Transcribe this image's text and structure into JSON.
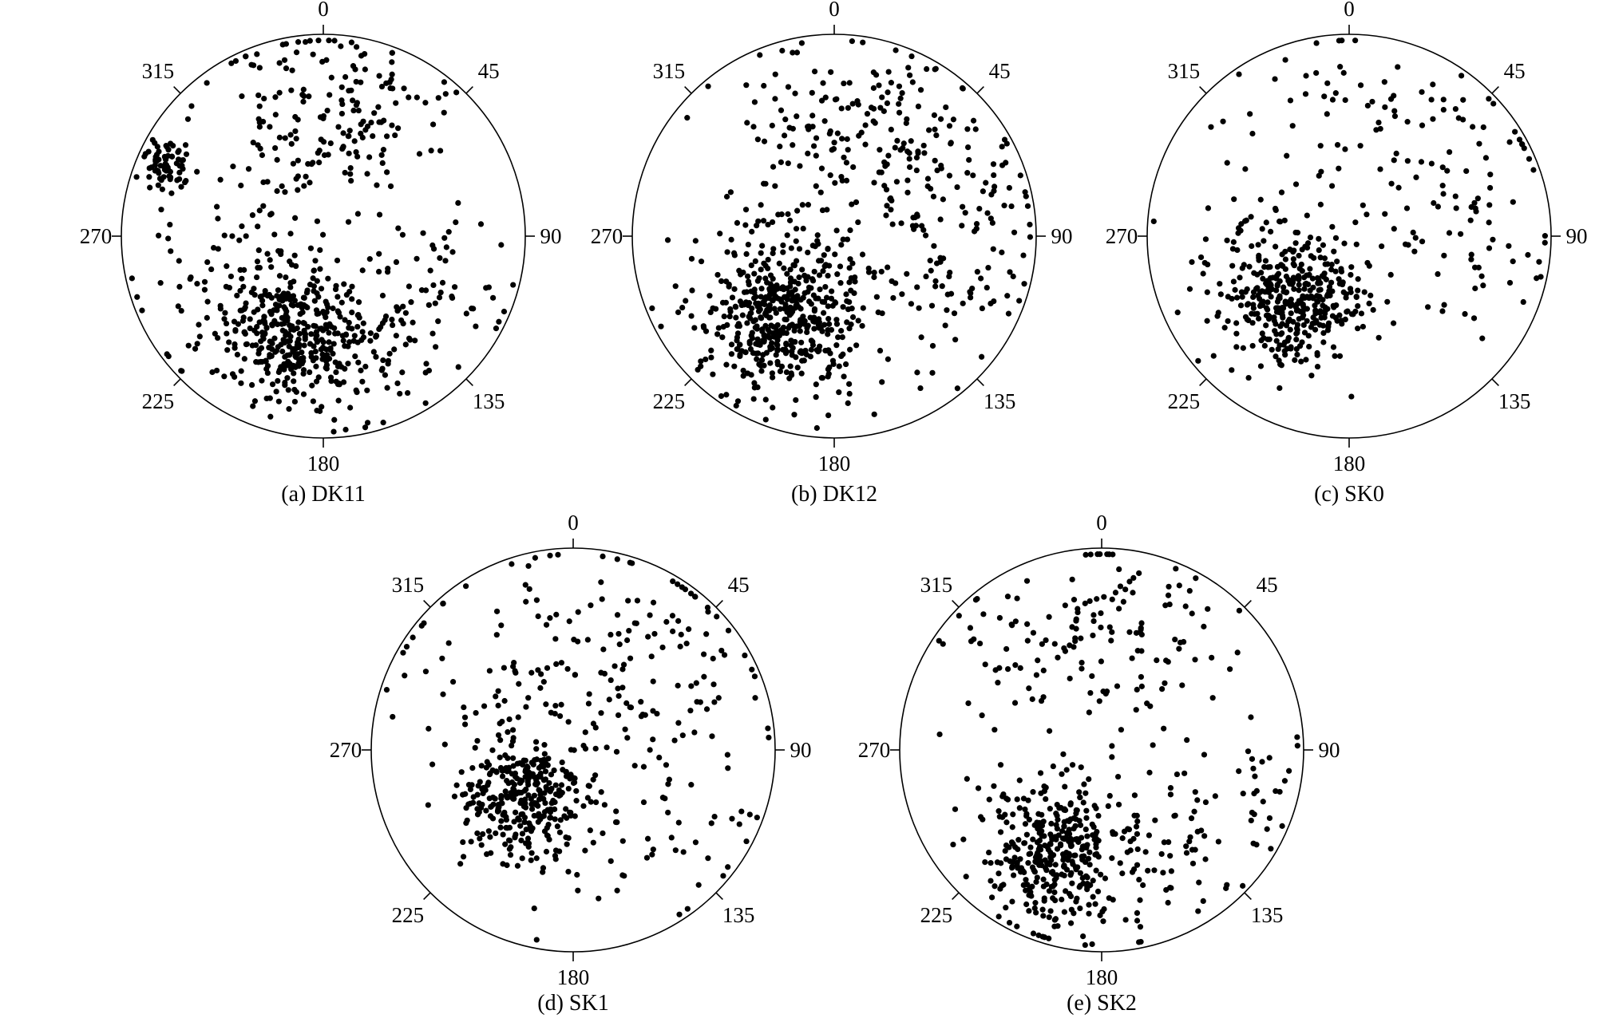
{
  "chart_data": [
    {
      "type": "scatter",
      "title": "(a) DK11",
      "axis_labels": [
        "0",
        "45",
        "90",
        "135",
        "180",
        "225",
        "270",
        "315"
      ],
      "clusters": [
        {
          "azimuth_deg": 198,
          "radial": 0.52,
          "count": 300,
          "spread": 0.16
        },
        {
          "azimuth_deg": 162,
          "radial": 0.52,
          "count": 110,
          "spread": 0.22
        },
        {
          "azimuth_deg": 295,
          "radial": 0.85,
          "count": 70,
          "spread": 0.06
        },
        {
          "azimuth_deg": 345,
          "radial": 0.62,
          "count": 90,
          "spread": 0.22
        },
        {
          "azimuth_deg": 20,
          "radial": 0.65,
          "count": 90,
          "spread": 0.22
        },
        {
          "azimuth_deg": 115,
          "radial": 0.6,
          "count": 60,
          "spread": 0.22
        },
        {
          "azimuth_deg": 245,
          "radial": 0.55,
          "count": 100,
          "spread": 0.25
        }
      ]
    },
    {
      "type": "scatter",
      "title": "(b) DK12",
      "axis_labels": [
        "0",
        "45",
        "90",
        "135",
        "180",
        "225",
        "270",
        "315"
      ],
      "clusters": [
        {
          "azimuth_deg": 215,
          "radial": 0.45,
          "count": 520,
          "spread": 0.2
        },
        {
          "azimuth_deg": 35,
          "radial": 0.55,
          "count": 120,
          "spread": 0.25
        },
        {
          "azimuth_deg": 340,
          "radial": 0.62,
          "count": 60,
          "spread": 0.22
        },
        {
          "azimuth_deg": 75,
          "radial": 0.55,
          "count": 80,
          "spread": 0.25
        },
        {
          "azimuth_deg": 130,
          "radial": 0.55,
          "count": 50,
          "spread": 0.25
        }
      ]
    },
    {
      "type": "scatter",
      "title": "(c) SK0",
      "axis_labels": [
        "0",
        "45",
        "90",
        "135",
        "180",
        "225",
        "270",
        "315"
      ],
      "clusters": [
        {
          "azimuth_deg": 218,
          "radial": 0.42,
          "count": 380,
          "spread": 0.17
        },
        {
          "azimuth_deg": 50,
          "radial": 0.62,
          "count": 60,
          "spread": 0.25
        },
        {
          "azimuth_deg": 350,
          "radial": 0.6,
          "count": 50,
          "spread": 0.25
        },
        {
          "azimuth_deg": 100,
          "radial": 0.6,
          "count": 40,
          "spread": 0.25
        },
        {
          "azimuth_deg": 260,
          "radial": 0.65,
          "count": 40,
          "spread": 0.22
        }
      ]
    },
    {
      "type": "scatter",
      "title": "(d) SK1",
      "axis_labels": [
        "0",
        "45",
        "90",
        "135",
        "180",
        "225",
        "270",
        "315"
      ],
      "clusters": [
        {
          "azimuth_deg": 225,
          "radial": 0.35,
          "count": 320,
          "spread": 0.15
        },
        {
          "azimuth_deg": 30,
          "radial": 0.45,
          "count": 150,
          "spread": 0.32
        },
        {
          "azimuth_deg": 130,
          "radial": 0.5,
          "count": 60,
          "spread": 0.28
        },
        {
          "azimuth_deg": 300,
          "radial": 0.5,
          "count": 50,
          "spread": 0.28
        }
      ]
    },
    {
      "type": "scatter",
      "title": "(e) SK2",
      "axis_labels": [
        "0",
        "45",
        "90",
        "135",
        "180",
        "225",
        "270",
        "315"
      ],
      "clusters": [
        {
          "azimuth_deg": 205,
          "radial": 0.55,
          "count": 360,
          "spread": 0.18
        },
        {
          "azimuth_deg": 10,
          "radial": 0.62,
          "count": 100,
          "spread": 0.25
        },
        {
          "azimuth_deg": 320,
          "radial": 0.65,
          "count": 50,
          "spread": 0.22
        },
        {
          "azimuth_deg": 110,
          "radial": 0.7,
          "count": 50,
          "spread": 0.22
        },
        {
          "azimuth_deg": 160,
          "radial": 0.55,
          "count": 60,
          "spread": 0.22
        }
      ]
    }
  ]
}
